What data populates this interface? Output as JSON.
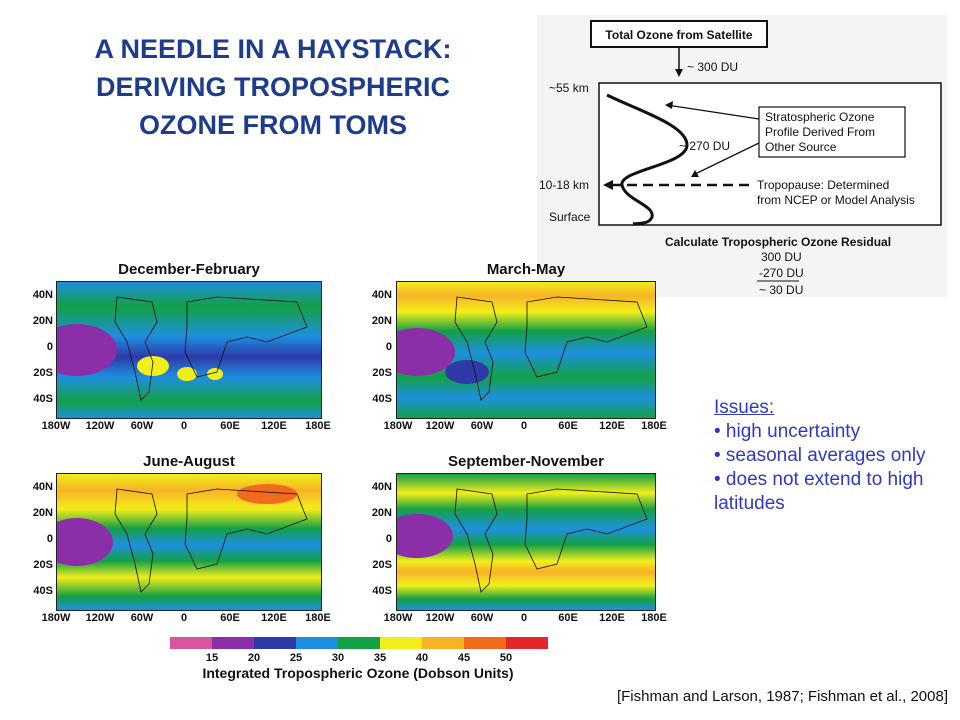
{
  "title": {
    "line1": "A NEEDLE IN A HAYSTACK:",
    "line2": "DERIVING TROPOSPHERIC",
    "line3": "OZONE FROM TOMS"
  },
  "diagram": {
    "box_title": "Total Ozone from Satellite",
    "total_value": "~ 300 DU",
    "alt_top": "~55 km",
    "alt_tropopause": "10-18  km",
    "alt_surface": "Surface",
    "strat_value": "~ 270 DU",
    "strat_label_1": "Stratospheric Ozone",
    "strat_label_2": "Profile Derived From",
    "strat_label_3": "Other Source",
    "tropo_label_1": "Tropopause: Determined",
    "tropo_label_2": "from NCEP or Model Analysis",
    "calc_title": "Calculate Tropospheric Ozone Residual",
    "calc_1": "300 DU",
    "calc_2": "-270 DU",
    "calc_3": "~ 30 DU"
  },
  "panels": [
    {
      "title": "December-February"
    },
    {
      "title": "March-May"
    },
    {
      "title": "June-August"
    },
    {
      "title": "September-November"
    }
  ],
  "lat_labels": [
    "40N",
    "20N",
    "0",
    "20S",
    "40S"
  ],
  "lon_labels": [
    "180W",
    "120W",
    "60W",
    "0",
    "60E",
    "120E",
    "180E"
  ],
  "colorbar": {
    "colors": [
      "#d9559e",
      "#8a2fa8",
      "#2d3aa8",
      "#1e8fe0",
      "#14a045",
      "#f2ee1a",
      "#f7b326",
      "#f26a1d",
      "#e3262a"
    ],
    "ticks": [
      "15",
      "20",
      "25",
      "30",
      "35",
      "40",
      "45",
      "50"
    ],
    "caption": "Integrated Tropospheric Ozone (Dobson Units)"
  },
  "issues": {
    "heading": "Issues:",
    "items": [
      "• high uncertainty",
      "• seasonal averages only",
      "• does not extend to high latitudes"
    ]
  },
  "citation": "[Fishman and Larson, 1987; Fishman et al., 2008]"
}
